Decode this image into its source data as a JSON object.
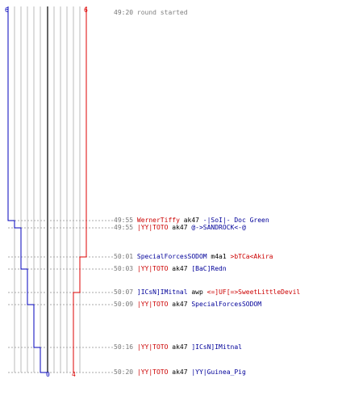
{
  "colors": {
    "red_team": "#dd0000",
    "blue_team": "#0000bb",
    "timestamp": "#777777",
    "grid": "#bbbbbb",
    "zero_line": "#666666"
  },
  "scores": {
    "blue_start": "6",
    "red_start": "6",
    "blue_end": "0",
    "red_end": "4"
  },
  "events": [
    {
      "time": "49:20",
      "message": "round started"
    },
    {
      "time": "49:55",
      "killer": "WernerTiffy",
      "weapon": "ak47",
      "victim": "-|SoI|- Doc Green",
      "killer_team": "red",
      "victim_team": "blue"
    },
    {
      "time": "49:55",
      "killer": "|YY|TOTO",
      "weapon": "ak47",
      "victim": "@->SANDROCK<-@",
      "killer_team": "red",
      "victim_team": "blue"
    },
    {
      "time": "50:01",
      "killer": "SpecialForcesSODOM",
      "weapon": "m4a1",
      "victim": ">bTCa<Akira",
      "killer_team": "blue",
      "victim_team": "red"
    },
    {
      "time": "50:03",
      "killer": "|YY|TOTO",
      "weapon": "ak47",
      "victim": "[BaC]Redn",
      "killer_team": "red",
      "victim_team": "blue"
    },
    {
      "time": "50:07",
      "killer": "]ICsN]IMitnal",
      "weapon": "awp",
      "victim": "<=]UF[=>SweetLittleDevil",
      "killer_team": "blue",
      "victim_team": "red"
    },
    {
      "time": "50:09",
      "killer": "|YY|TOTO",
      "weapon": "ak47",
      "victim": "SpecialForcesSODOM",
      "killer_team": "red",
      "victim_team": "blue"
    },
    {
      "time": "50:16",
      "killer": "|YY|TOTO",
      "weapon": "ak47",
      "victim": "]ICsN]IMitnal",
      "killer_team": "red",
      "victim_team": "blue"
    },
    {
      "time": "50:20",
      "killer": "|YY|TOTO",
      "weapon": "ak47",
      "victim": "|YY|Guinea_Pig",
      "killer_team": "red",
      "victim_team": "blue"
    }
  ]
}
